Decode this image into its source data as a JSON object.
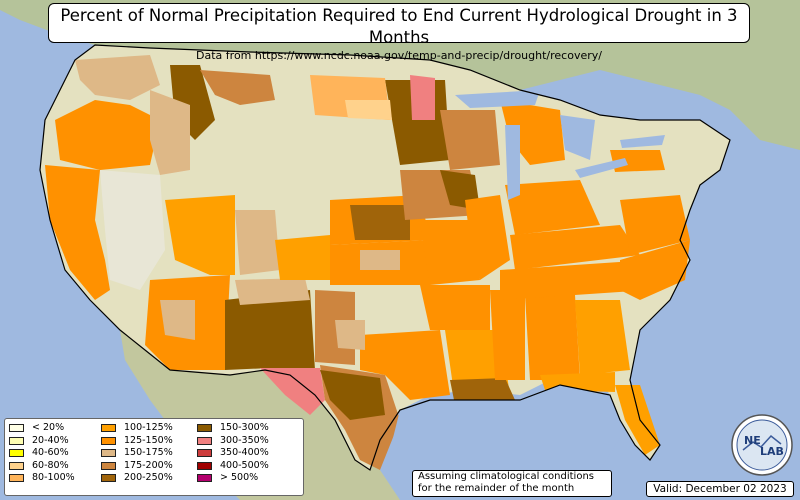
{
  "title": "Percent of Normal Precipitation Required to End Current Hydrological Drought in 3 Months",
  "subtitle": "Data from https://www.ncdc.noaa.gov/temp-and-precip/drought/recovery/",
  "legend": [
    {
      "label": "< 20%",
      "color": "#ffffe6"
    },
    {
      "label": "20-40%",
      "color": "#ffffb3"
    },
    {
      "label": "40-60%",
      "color": "#ffff00"
    },
    {
      "label": "60-80%",
      "color": "#ffd28c"
    },
    {
      "label": "80-100%",
      "color": "#ffb45a"
    },
    {
      "label": "100-125%",
      "color": "#ffa000"
    },
    {
      "label": "125-150%",
      "color": "#ff9100"
    },
    {
      "label": "150-175%",
      "color": "#deb887"
    },
    {
      "label": "175-200%",
      "color": "#cd853f"
    },
    {
      "label": "200-250%",
      "color": "#a0640a"
    },
    {
      "label": "150-300%",
      "color": "#8b5a00"
    },
    {
      "label": "300-350%",
      "color": "#f08080"
    },
    {
      "label": "350-400%",
      "color": "#cd3c3c"
    },
    {
      "label": "400-500%",
      "color": "#a00000"
    },
    {
      "label": "> 500%",
      "color": "#b4006e"
    }
  ],
  "note_line1": "Assuming climatological conditions",
  "note_line2": "for the remainder of the month",
  "valid": "Valid: December 02 2023",
  "logo_text_1": "NE",
  "logo_text_2": "LAB"
}
